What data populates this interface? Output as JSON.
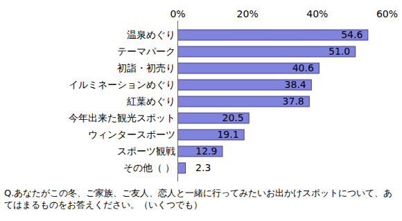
{
  "chart_data": {
    "type": "bar",
    "orientation": "horizontal",
    "categories": [
      "温泉めぐり",
      "テーマパーク",
      "初詣・初売り",
      "イルミネーションめぐり",
      "紅葉めぐり",
      "今年出来た観光スポット",
      "ウィンタースポーツ",
      "スポーツ観戦",
      "その他（ ）"
    ],
    "values": [
      54.6,
      51.0,
      40.6,
      38.4,
      37.8,
      20.5,
      19.1,
      12.9,
      2.3
    ],
    "value_labels": [
      "54.6",
      "51.0",
      "40.6",
      "38.4",
      "37.8",
      "20.5",
      "19.1",
      "12.9",
      "2.3"
    ],
    "data_labels": true,
    "color": "#8084dc",
    "xlim": [
      0,
      60
    ],
    "xticks": [
      {
        "value": 0,
        "label": "0%"
      },
      {
        "value": 20,
        "label": "20%"
      },
      {
        "value": 40,
        "label": "40%"
      },
      {
        "value": 60,
        "label": "60%"
      }
    ],
    "grid": false,
    "caption": "Q.あなたがこの冬、ご家族、ご友人、恋人と一緒に行ってみたいお出かけスポットについて、あてはまるものをお答えください。（いくつでも）"
  }
}
